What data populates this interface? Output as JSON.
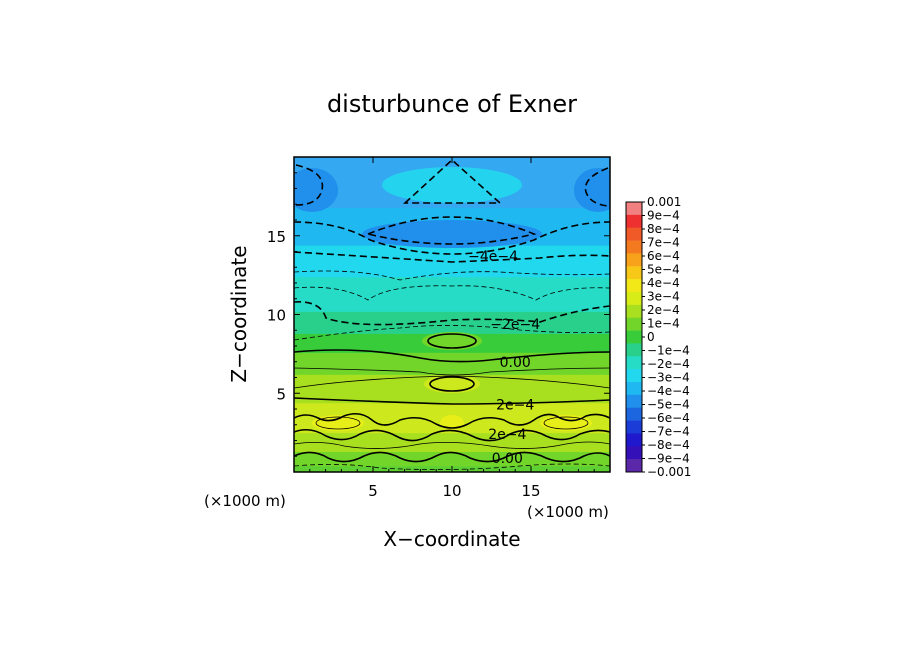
{
  "chart_data": {
    "type": "heatmap",
    "title": "disturbunce of Exner",
    "xlabel": "X−coordinate",
    "ylabel": "Z−coordinate",
    "x_unit_label": "(×1000 m)",
    "y_unit_label": "(×1000 m)",
    "xlim": [
      0,
      20
    ],
    "ylim": [
      0,
      20
    ],
    "x_ticks": [
      5,
      10,
      15
    ],
    "y_ticks": [
      5,
      10,
      15
    ],
    "x_tick_labels": [
      "5",
      "10",
      "15"
    ],
    "y_tick_labels": [
      "5",
      "10",
      "15"
    ],
    "contour_labels": [
      {
        "text": "−4e−4",
        "x": 12.6,
        "z": 13.7
      },
      {
        "text": "−2e−4",
        "x": 14.0,
        "z": 9.4
      },
      {
        "text": "0.00",
        "x": 14.0,
        "z": 7.0
      },
      {
        "text": "2e−4",
        "x": 14.0,
        "z": 4.3
      },
      {
        "text": "2e−4",
        "x": 13.5,
        "z": 2.4
      },
      {
        "text": "0.00",
        "x": 13.5,
        "z": 0.9
      }
    ],
    "colorbar": {
      "min": -0.001,
      "max": 0.001,
      "step": 0.0001,
      "labels": [
        "0.001",
        "9e−4",
        "8e−4",
        "7e−4",
        "6e−4",
        "5e−4",
        "4e−4",
        "3e−4",
        "2e−4",
        "1e−4",
        "0",
        "−1e−4",
        "−2e−4",
        "−3e−4",
        "−4e−4",
        "−5e−4",
        "−6e−4",
        "−7e−4",
        "−8e−4",
        "−9e−4",
        "−0.001"
      ],
      "colors": [
        "#f28080",
        "#ee3030",
        "#f05a28",
        "#f47a20",
        "#f7a21a",
        "#f8c818",
        "#f2e818",
        "#d8ec18",
        "#a8e020",
        "#72d62a",
        "#38cc3a",
        "#28d08c",
        "#26dcc6",
        "#22d8ee",
        "#20b8f0",
        "#2090ec",
        "#1c66e0",
        "#1c3cd8",
        "#2018cc",
        "#3410b8",
        "#5a28a8"
      ]
    },
    "bands": [
      {
        "z": [
          0.0,
          0.4
        ],
        "color": "#5fd034"
      },
      {
        "z": [
          0.4,
          1.3
        ],
        "color": "#72d62a"
      },
      {
        "z": [
          1.3,
          2.5
        ],
        "color": "#a8e020"
      },
      {
        "z": [
          2.5,
          4.4
        ],
        "color": "#cde81c"
      },
      {
        "z": [
          4.4,
          6.2
        ],
        "color": "#a8e020"
      },
      {
        "z": [
          6.2,
          7.6
        ],
        "color": "#72d62a"
      },
      {
        "z": [
          7.6,
          8.8
        ],
        "color": "#38cc3a"
      },
      {
        "z": [
          8.8,
          10.2
        ],
        "color": "#28d08c"
      },
      {
        "z": [
          10.2,
          12.4
        ],
        "color": "#26dcc6"
      },
      {
        "z": [
          12.4,
          14.4
        ],
        "color": "#22d8ee"
      },
      {
        "z": [
          14.4,
          16.8
        ],
        "color": "#20b8f0"
      },
      {
        "z": [
          16.8,
          20.0
        ],
        "color": "#34a8f0"
      }
    ]
  }
}
